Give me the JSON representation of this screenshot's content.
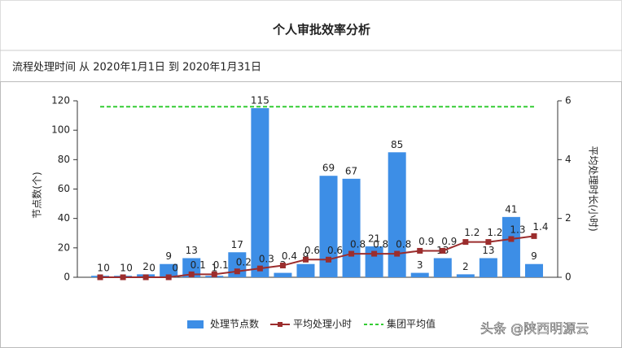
{
  "chart_data": {
    "type": "bar-line",
    "title": "个人审批效率分析",
    "subtitle": "流程处理时间 从 2020年1月1日 到 2020年1月31日",
    "categories": [
      null,
      null,
      null,
      null,
      null,
      null,
      null,
      null,
      null,
      null,
      null,
      null,
      null,
      null,
      null,
      null,
      null,
      null,
      null,
      null
    ],
    "series": [
      {
        "name": "处理节点数",
        "type": "bar",
        "color": "#3d8ee6",
        "values": [
          1,
          1,
          2,
          9,
          13,
          1,
          17,
          115,
          3,
          9,
          69,
          67,
          21,
          85,
          3,
          13,
          2,
          13,
          41,
          9
        ]
      },
      {
        "name": "平均处理小时",
        "type": "line",
        "axis": "y2",
        "color": "#9b2d2d",
        "values": [
          0,
          0,
          0,
          0,
          0.1,
          0.1,
          0.2,
          0.3,
          0.4,
          0.6,
          0.6,
          0.8,
          0.8,
          0.8,
          0.9,
          0.9,
          1.2,
          1.2,
          1.3,
          1.4
        ]
      },
      {
        "name": "集团平均值",
        "type": "reference",
        "axis": "y2",
        "color": "#33cc33",
        "value": 5.8
      }
    ],
    "ylabel": "节点数(个)",
    "y2label": "平均处理时长(小时)",
    "ylim": [
      0,
      120
    ],
    "yticks": [
      0,
      20,
      40,
      60,
      80,
      100,
      120
    ],
    "y2lim": [
      0,
      6
    ],
    "y2ticks": [
      0,
      2,
      4,
      6
    ],
    "grid": false,
    "legend": "bottom",
    "watermark": "头条 @陕西明源云"
  }
}
